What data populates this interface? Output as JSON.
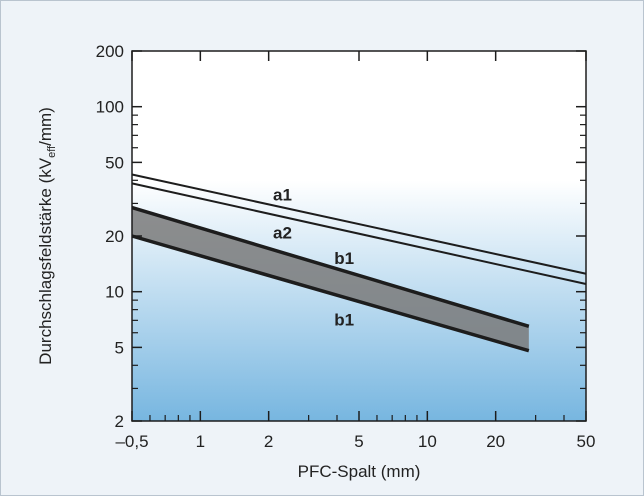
{
  "chart_data": {
    "type": "line",
    "xlabel": "PFC-Spalt (mm)",
    "ylabel": {
      "prefix": "Durchschlagsfeldstärke (kV",
      "subscript": "eff",
      "suffix": "/mm)"
    },
    "x_scale": "log",
    "y_scale": "log",
    "xlim": [
      0.5,
      50
    ],
    "ylim": [
      2,
      200
    ],
    "x_ticks": [
      {
        "value": 0.5,
        "label": "–0,5"
      },
      {
        "value": 1,
        "label": "1"
      },
      {
        "value": 2,
        "label": "2"
      },
      {
        "value": 5,
        "label": "5"
      },
      {
        "value": 10,
        "label": "10"
      },
      {
        "value": 20,
        "label": "20"
      },
      {
        "value": 50,
        "label": "50"
      }
    ],
    "y_ticks": [
      {
        "value": 2,
        "label": "2"
      },
      {
        "value": 5,
        "label": "5"
      },
      {
        "value": 10,
        "label": "10"
      },
      {
        "value": 20,
        "label": "20"
      },
      {
        "value": 50,
        "label": "50"
      },
      {
        "value": 100,
        "label": "100"
      },
      {
        "value": 200,
        "label": "200"
      }
    ],
    "series": [
      {
        "name": "a1",
        "x": [
          0.5,
          50
        ],
        "y": [
          43,
          12.5
        ]
      },
      {
        "name": "a2",
        "x": [
          0.5,
          50
        ],
        "y": [
          38.5,
          11
        ]
      },
      {
        "name": "b1",
        "x": [
          0.5,
          28
        ],
        "y": [
          28.5,
          6.5
        ]
      },
      {
        "name": "b1",
        "x": [
          0.5,
          28
        ],
        "y": [
          20,
          4.8
        ]
      }
    ],
    "band_between": [
      2,
      3
    ],
    "grid": false,
    "colors": {
      "line": "#1d1d1d",
      "band": "#7a7a7a",
      "background_top": "#ffffff",
      "background_bottom": "#77b6e0",
      "frame": "#eef3f8"
    }
  }
}
